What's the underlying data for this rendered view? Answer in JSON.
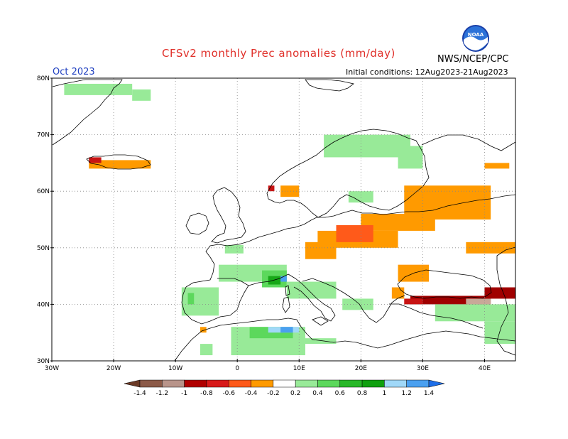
{
  "header": {
    "title": "CFSv2 monthly Prec anomalies (mm/day)",
    "month": "Oct 2023",
    "initial_conditions": "Initial conditions: 12Aug2023-21Aug2023",
    "agency": "NWS/NCEP/CPC",
    "logo_text": "NOAA"
  },
  "map": {
    "lon_range": [
      -30,
      45
    ],
    "lat_range": [
      30,
      80
    ],
    "lat_labels": [
      "30N",
      "40N",
      "50N",
      "60N",
      "70N",
      "80N"
    ],
    "lat_values": [
      30,
      40,
      50,
      60,
      70,
      80
    ],
    "lon_labels": [
      "30W",
      "20W",
      "10W",
      "0",
      "10E",
      "20E",
      "30E",
      "40E"
    ],
    "lon_values": [
      -30,
      -20,
      -10,
      0,
      10,
      20,
      30,
      40
    ]
  },
  "colorbar": {
    "labels": [
      "-1.4",
      "-1.2",
      "-1",
      "-0.8",
      "-0.6",
      "-0.4",
      "-0.2",
      "0.2",
      "0.4",
      "0.6",
      "0.8",
      "1",
      "1.2",
      "1.4"
    ],
    "colors": [
      "#6b3a26",
      "#8c5a48",
      "#b8948a",
      "#b00000",
      "#d81a1a",
      "#ff5a1a",
      "#ff9a00",
      "#ffffff",
      "#98ea98",
      "#5cd85c",
      "#28b828",
      "#10a010",
      "#a0d8f8",
      "#4aa0f0",
      "#1e6ee8"
    ]
  },
  "colors": {
    "pos_light": "#98ea98",
    "pos_med": "#5cd85c",
    "pos_dark": "#18a818",
    "pos_blue_light": "#a0d8f8",
    "pos_blue": "#4aa0f0",
    "neg_orange": "#ff9a00",
    "neg_red_orange": "#ff5a1a",
    "neg_red": "#c81414",
    "neg_dark_red": "#a00000",
    "neg_brown": "#9c6a58",
    "neg_light_brown": "#c8a898"
  },
  "anomaly_regions": [
    {
      "level": "pos_light",
      "lons": [
        -28,
        -17
      ],
      "lats": [
        77,
        79
      ]
    },
    {
      "level": "pos_light",
      "lons": [
        -17,
        -14
      ],
      "lats": [
        76,
        78
      ]
    },
    {
      "level": "neg_orange",
      "lons": [
        -24,
        -14
      ],
      "lats": [
        64,
        65.5
      ]
    },
    {
      "level": "neg_red",
      "lons": [
        -24,
        -22
      ],
      "lats": [
        65,
        66
      ]
    },
    {
      "level": "pos_light",
      "lons": [
        14,
        28
      ],
      "lats": [
        66,
        70
      ]
    },
    {
      "level": "pos_light",
      "lons": [
        26,
        30
      ],
      "lats": [
        64,
        68
      ]
    },
    {
      "level": "neg_orange",
      "lons": [
        7,
        10
      ],
      "lats": [
        59,
        61
      ]
    },
    {
      "level": "neg_red",
      "lons": [
        5,
        6
      ],
      "lats": [
        60,
        61
      ]
    },
    {
      "level": "pos_light",
      "lons": [
        18,
        22
      ],
      "lats": [
        58,
        60
      ]
    },
    {
      "level": "neg_orange",
      "lons": [
        27,
        41
      ],
      "lats": [
        55,
        61
      ]
    },
    {
      "level": "neg_orange",
      "lons": [
        20,
        32
      ],
      "lats": [
        53,
        56
      ]
    },
    {
      "level": "neg_orange",
      "lons": [
        13,
        26
      ],
      "lats": [
        50,
        53
      ]
    },
    {
      "level": "neg_red_orange",
      "lons": [
        16,
        22
      ],
      "lats": [
        51,
        54
      ]
    },
    {
      "level": "neg_orange",
      "lons": [
        11,
        16
      ],
      "lats": [
        48,
        51
      ]
    },
    {
      "level": "neg_orange",
      "lons": [
        37,
        45
      ],
      "lats": [
        49,
        51
      ]
    },
    {
      "level": "pos_light",
      "lons": [
        -3,
        8
      ],
      "lats": [
        44,
        47
      ]
    },
    {
      "level": "pos_med",
      "lons": [
        4,
        8
      ],
      "lats": [
        43,
        46
      ]
    },
    {
      "level": "pos_dark",
      "lons": [
        5,
        7
      ],
      "lats": [
        43.5,
        45
      ]
    },
    {
      "level": "pos_blue",
      "lons": [
        7,
        8
      ],
      "lats": [
        44,
        45
      ]
    },
    {
      "level": "pos_light",
      "lons": [
        -9,
        -3
      ],
      "lats": [
        38,
        43
      ]
    },
    {
      "level": "pos_med",
      "lons": [
        -8,
        -7
      ],
      "lats": [
        40,
        42
      ]
    },
    {
      "level": "pos_light",
      "lons": [
        8,
        16
      ],
      "lats": [
        41,
        44
      ]
    },
    {
      "level": "pos_light",
      "lons": [
        17,
        22
      ],
      "lats": [
        39,
        41
      ]
    },
    {
      "level": "neg_orange",
      "lons": [
        26,
        31
      ],
      "lats": [
        44,
        47
      ]
    },
    {
      "level": "neg_orange",
      "lons": [
        25,
        27
      ],
      "lats": [
        41,
        43
      ]
    },
    {
      "level": "neg_dark_red",
      "lons": [
        28,
        41
      ],
      "lats": [
        40,
        41.5
      ]
    },
    {
      "level": "neg_red",
      "lons": [
        27,
        30
      ],
      "lats": [
        40,
        41
      ]
    },
    {
      "level": "neg_light_brown",
      "lons": [
        37,
        41
      ],
      "lats": [
        40,
        41
      ]
    },
    {
      "level": "neg_dark_red",
      "lons": [
        40,
        45
      ],
      "lats": [
        41,
        43
      ]
    },
    {
      "level": "pos_light",
      "lons": [
        32,
        45
      ],
      "lats": [
        37,
        40
      ]
    },
    {
      "level": "pos_light",
      "lons": [
        40,
        45
      ],
      "lats": [
        33,
        37
      ]
    },
    {
      "level": "pos_light",
      "lons": [
        -1,
        11
      ],
      "lats": [
        31,
        36
      ]
    },
    {
      "level": "pos_med",
      "lons": [
        2,
        9
      ],
      "lats": [
        34,
        36
      ]
    },
    {
      "level": "pos_blue_light",
      "lons": [
        5,
        10
      ],
      "lats": [
        35,
        36
      ]
    },
    {
      "level": "pos_blue",
      "lons": [
        7,
        9
      ],
      "lats": [
        35,
        36
      ]
    },
    {
      "level": "pos_light",
      "lons": [
        11,
        16
      ],
      "lats": [
        33,
        34
      ]
    },
    {
      "level": "neg_orange",
      "lons": [
        -6,
        -5
      ],
      "lats": [
        35,
        36
      ]
    },
    {
      "level": "pos_light",
      "lons": [
        -6,
        -4
      ],
      "lats": [
        31,
        33
      ]
    },
    {
      "level": "pos_light",
      "lons": [
        -2,
        1
      ],
      "lats": [
        49,
        50.5
      ]
    },
    {
      "level": "neg_orange",
      "lons": [
        40,
        44
      ],
      "lats": [
        64,
        65
      ]
    }
  ]
}
